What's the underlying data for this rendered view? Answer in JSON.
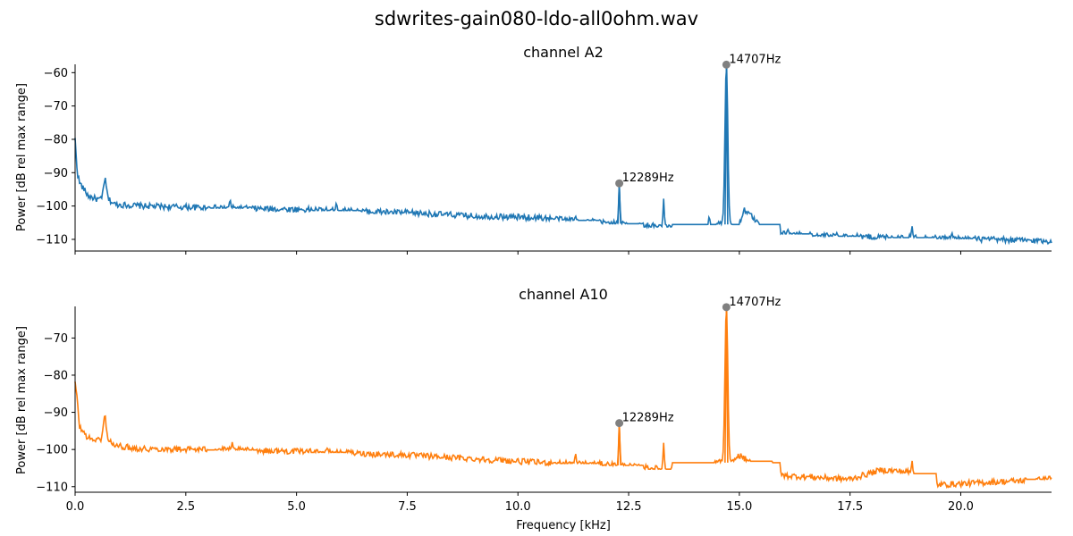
{
  "figure_title": "sdwrites-gain080-ldo-all0ohm.wav",
  "colors": {
    "series_a2": "#1f77b4",
    "series_a10": "#ff7f0e",
    "marker": "#808080",
    "axis": "#000000"
  },
  "chart_data": [
    {
      "type": "line",
      "title": "channel A2",
      "xlabel": "",
      "ylabel": "Power [dB rel max range]",
      "xlim": [
        0,
        22.05
      ],
      "ylim": [
        -113.5,
        -57.5
      ],
      "xticks": [
        0,
        2.5,
        5,
        7.5,
        10,
        12.5,
        15,
        17.5,
        20
      ],
      "xtick_labels_visible": false,
      "yticks": [
        -110,
        -100,
        -90,
        -80,
        -70,
        -60
      ],
      "ytick_labels": [
        "−110",
        "−100",
        "−90",
        "−80",
        "−70",
        "−60"
      ],
      "grid": false,
      "baseline": [
        [
          0,
          -80
        ],
        [
          0.05,
          -90
        ],
        [
          0.1,
          -93
        ],
        [
          0.3,
          -97
        ],
        [
          0.5,
          -98
        ],
        [
          0.6,
          -98
        ],
        [
          0.67,
          -91.5
        ],
        [
          0.75,
          -98
        ],
        [
          0.9,
          -99.5
        ],
        [
          1.5,
          -100
        ],
        [
          3,
          -100.5
        ],
        [
          5,
          -101
        ],
        [
          7.5,
          -102
        ],
        [
          9,
          -103
        ],
        [
          10.5,
          -103.5
        ],
        [
          12,
          -105
        ],
        [
          13,
          -106
        ],
        [
          14,
          -107
        ],
        [
          14.6,
          -105
        ],
        [
          14.8,
          -106
        ],
        [
          14.95,
          -108
        ],
        [
          15.1,
          -101
        ],
        [
          15.35,
          -104
        ],
        [
          15.6,
          -108
        ],
        [
          17,
          -109
        ],
        [
          19,
          -109.5
        ],
        [
          22.05,
          -110.5
        ]
      ],
      "spikes": [
        [
          3.5,
          -98
        ],
        [
          5.9,
          -99
        ],
        [
          11.3,
          -103
        ],
        [
          12.289,
          -93.2
        ],
        [
          13.29,
          -97.8
        ],
        [
          14.32,
          -103
        ],
        [
          14.707,
          -57.6
        ],
        [
          15.25,
          -105.5
        ],
        [
          16.1,
          -107
        ],
        [
          17.2,
          -108
        ],
        [
          18.9,
          -106
        ],
        [
          19.8,
          -108
        ]
      ],
      "noise_amplitude": 0.9,
      "peaks": [
        {
          "x": 12.289,
          "y": -93.2,
          "label": "12289Hz"
        },
        {
          "x": 14.707,
          "y": -57.6,
          "label": "14707Hz"
        }
      ]
    },
    {
      "type": "line",
      "title": "channel A10",
      "xlabel": "Frequency [kHz]",
      "ylabel": "Power [dB rel max range]",
      "xlim": [
        0,
        22.05
      ],
      "ylim": [
        -111.5,
        -61.5
      ],
      "xticks": [
        0,
        2.5,
        5,
        7.5,
        10,
        12.5,
        15,
        17.5,
        20
      ],
      "xtick_labels": [
        "0.0",
        "2.5",
        "5.0",
        "7.5",
        "10.0",
        "12.5",
        "15.0",
        "17.5",
        "20.0"
      ],
      "xtick_labels_visible": true,
      "yticks": [
        -110,
        -100,
        -90,
        -80,
        -70
      ],
      "ytick_labels": [
        "−110",
        "−100",
        "−90",
        "−80",
        "−70"
      ],
      "grid": false,
      "baseline": [
        [
          0,
          -82
        ],
        [
          0.05,
          -87
        ],
        [
          0.1,
          -94
        ],
        [
          0.3,
          -97
        ],
        [
          0.5,
          -97.5
        ],
        [
          0.6,
          -97
        ],
        [
          0.67,
          -90.5
        ],
        [
          0.75,
          -97.5
        ],
        [
          0.9,
          -99
        ],
        [
          1.5,
          -99.8
        ],
        [
          3,
          -100
        ],
        [
          5,
          -100.5
        ],
        [
          7.5,
          -101.5
        ],
        [
          9,
          -102.5
        ],
        [
          10.5,
          -103.5
        ],
        [
          12,
          -104
        ],
        [
          13,
          -105
        ],
        [
          14,
          -106
        ],
        [
          14.6,
          -103
        ],
        [
          14.8,
          -104
        ],
        [
          15,
          -101.5
        ],
        [
          15.3,
          -104
        ],
        [
          16,
          -107
        ],
        [
          17.5,
          -108
        ],
        [
          18.2,
          -105.5
        ],
        [
          18.8,
          -106
        ],
        [
          19.5,
          -109.5
        ],
        [
          22.05,
          -108
        ]
      ],
      "spikes": [
        [
          3.55,
          -98
        ],
        [
          5.7,
          -99.5
        ],
        [
          11.3,
          -101
        ],
        [
          12.289,
          -92.9
        ],
        [
          13.29,
          -98.2
        ],
        [
          13.8,
          -105
        ],
        [
          14.42,
          -103.5
        ],
        [
          14.707,
          -61.7
        ],
        [
          15.2,
          -103
        ],
        [
          18.9,
          -103
        ],
        [
          22.0,
          -107
        ]
      ],
      "noise_amplitude": 0.8,
      "peaks": [
        {
          "x": 12.289,
          "y": -92.9,
          "label": "12289Hz"
        },
        {
          "x": 14.707,
          "y": -61.7,
          "label": "14707Hz"
        }
      ]
    }
  ]
}
